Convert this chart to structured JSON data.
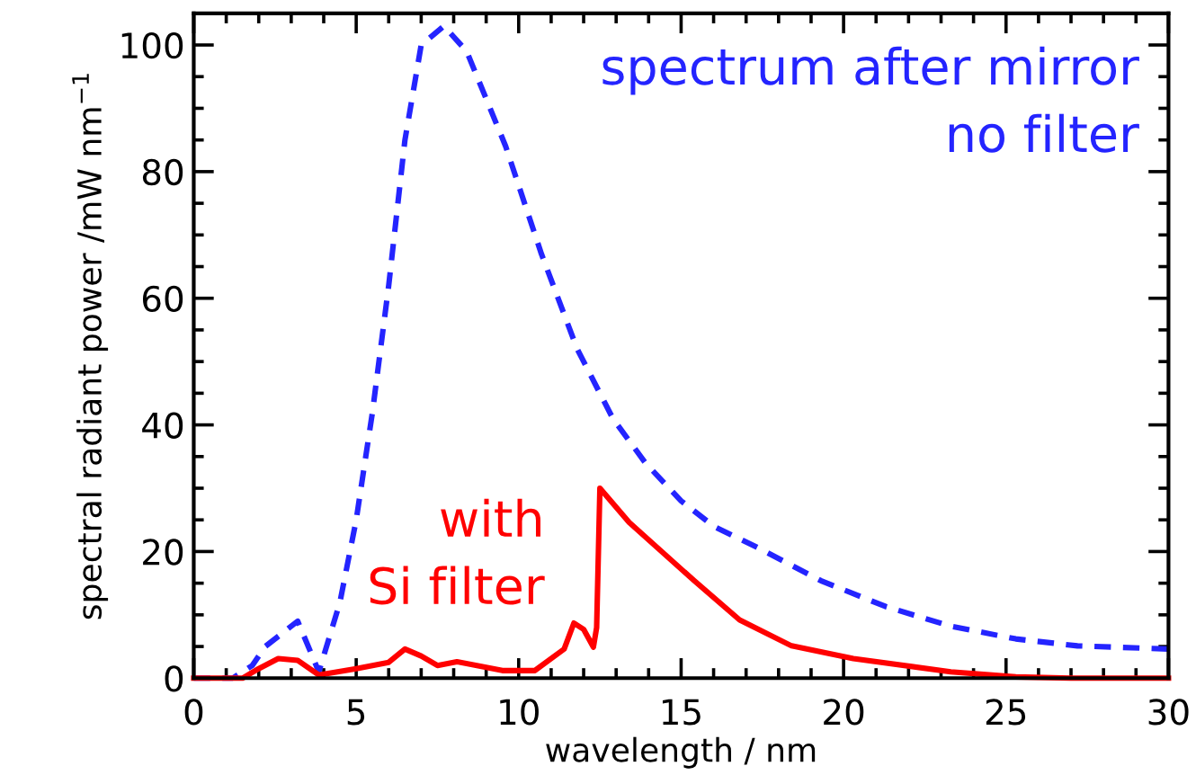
{
  "chart_data": {
    "type": "line",
    "xlabel": "wavelength / nm",
    "ylabel": "spectral radiant power /mW nm$^{−1}$",
    "xlim": [
      0,
      30
    ],
    "ylim": [
      0,
      105
    ],
    "xticks": [
      0,
      5,
      10,
      15,
      20,
      25,
      30
    ],
    "yticks": [
      0,
      20,
      40,
      60,
      80,
      100
    ],
    "series": [
      {
        "name": "spectrum after mirror\nno filter",
        "color": "#2424ff",
        "line_style": "dashed",
        "x": [
          0,
          1.2,
          1.8,
          2.2,
          2.7,
          3.2,
          3.85,
          4.5,
          5,
          5.5,
          6,
          6.5,
          7,
          7.7,
          8.4,
          9.6,
          10.7,
          11.8,
          12.9,
          13.9,
          15,
          16,
          17.4,
          19.3,
          21.3,
          23.3,
          25.3,
          27.2,
          30
        ],
        "values": [
          0,
          0,
          2,
          5,
          7,
          9,
          1,
          12,
          25,
          42,
          62,
          85,
          100,
          103,
          99,
          84,
          67,
          52,
          41,
          34,
          28,
          24,
          20.5,
          15.4,
          11.3,
          8.2,
          6.2,
          5.1,
          4.6
        ]
      },
      {
        "name": "with\nSi filter",
        "color": "#ff0000",
        "line_style": "solid",
        "x": [
          0,
          1.5,
          2,
          2.6,
          3.2,
          3.85,
          5,
          6,
          6.5,
          7,
          7.5,
          8.1,
          9.5,
          10.5,
          11.4,
          11.7,
          12,
          12.3,
          12.4,
          12.5,
          13.4,
          15.4,
          16.8,
          18.4,
          20.3,
          23.3,
          25.3,
          27,
          30
        ],
        "values": [
          0,
          0,
          1.5,
          3.1,
          2.8,
          0.5,
          1.5,
          2.5,
          4.6,
          3.5,
          2,
          2.6,
          1.2,
          1.2,
          4.6,
          8.7,
          7.7,
          4.9,
          8,
          30,
          24.6,
          15.4,
          9.2,
          5.1,
          3.1,
          1,
          0.2,
          0,
          0
        ]
      }
    ]
  }
}
